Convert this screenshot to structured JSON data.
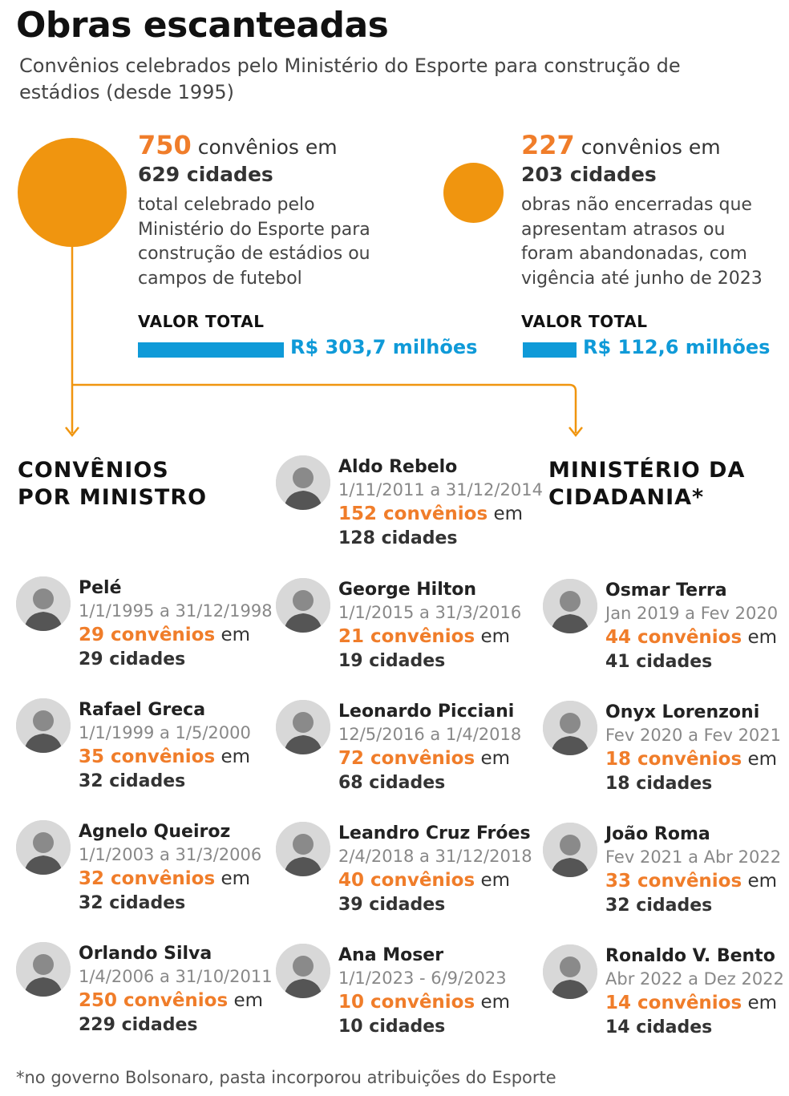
{
  "header": {
    "title": "Obras escanteadas",
    "subtitle": "Convênios celebrados pelo Ministério do Esporte para construção de estádios (desde 1995)"
  },
  "stats": [
    {
      "number": "750",
      "line1_suffix": "convênios em",
      "line2": "629 cidades",
      "desc": [
        "total celebrado pelo",
        "Ministério do Esporte para",
        "construção de estádios ou",
        "campos de futebol"
      ],
      "valor_label": "VALOR TOTAL",
      "valor": "R$ 303,7 milhões",
      "amount": 303.7
    },
    {
      "number": "227",
      "line1_suffix": "convênios em",
      "line2": "203 cidades",
      "desc": [
        "obras não encerradas que",
        "apresentam atrasos ou",
        "foram abandonadas, com",
        "vigência até junho de 2023"
      ],
      "valor_label": "VALOR TOTAL",
      "valor": "R$ 112,6 milhões",
      "amount": 112.6
    }
  ],
  "sections": {
    "ministros_line1": "CONVÊNIOS",
    "ministros_line2": "POR MINISTRO",
    "cidadania_line1": "MINISTÉRIO DA",
    "cidadania_line2": "CIDADANIA*"
  },
  "col1": [
    {
      "name": "Pelé",
      "period": "1/1/1995 a 31/12/1998",
      "convenios": "29 convênios",
      "em": " em",
      "cidades": "29 cidades"
    },
    {
      "name": "Rafael Greca",
      "period": "1/1/1999 a 1/5/2000",
      "convenios": "35 convênios",
      "em": " em",
      "cidades": "32 cidades"
    },
    {
      "name": "Agnelo Queiroz",
      "period": "1/1/2003 a 31/3/2006",
      "convenios": "32 convênios",
      "em": " em",
      "cidades": "32 cidades"
    },
    {
      "name": "Orlando Silva",
      "period": "1/4/2006 a 31/10/2011",
      "convenios": "250 convênios",
      "em": " em",
      "cidades": "229 cidades"
    }
  ],
  "col2": [
    {
      "name": "Aldo Rebelo",
      "period": "1/11/2011 a 31/12/2014",
      "convenios": "152 convênios",
      "em": " em",
      "cidades": "128 cidades"
    },
    {
      "name": "George Hilton",
      "period": "1/1/2015 a 31/3/2016",
      "convenios": "21 convênios",
      "em": " em",
      "cidades": "19 cidades"
    },
    {
      "name": "Leonardo Picciani",
      "period": "12/5/2016 a 1/4/2018",
      "convenios": "72 convênios",
      "em": " em",
      "cidades": "68 cidades"
    },
    {
      "name": "Leandro Cruz Fróes",
      "period": "2/4/2018 a 31/12/2018",
      "convenios": "40 convênios",
      "em": " em",
      "cidades": "39 cidades"
    },
    {
      "name": "Ana Moser",
      "period": "1/1/2023 - 6/9/2023",
      "convenios": "10 convênios",
      "em": " em",
      "cidades": "10 cidades"
    }
  ],
  "col3": [
    {
      "name": "Osmar Terra",
      "period": "Jan 2019 a Fev 2020",
      "convenios": "44 convênios",
      "em": " em",
      "cidades": "41 cidades"
    },
    {
      "name": "Onyx Lorenzoni",
      "period": "Fev 2020 a Fev 2021",
      "convenios": "18 convênios",
      "em": " em",
      "cidades": "18 cidades"
    },
    {
      "name": "João Roma",
      "period": "Fev 2021 a Abr 2022",
      "convenios": "33 convênios",
      "em": " em",
      "cidades": "32 cidades"
    },
    {
      "name": "Ronaldo V. Bento",
      "period": "Abr 2022 a Dez 2022",
      "convenios": "14 convênios",
      "em": " em",
      "cidades": "14 cidades"
    }
  ],
  "footnote": "*no governo Bolsonaro, pasta incorporou atribuições do Esporte",
  "colors": {
    "accent": "#f0950f",
    "number": "#f07d2a",
    "bar": "#0f9ad8"
  }
}
